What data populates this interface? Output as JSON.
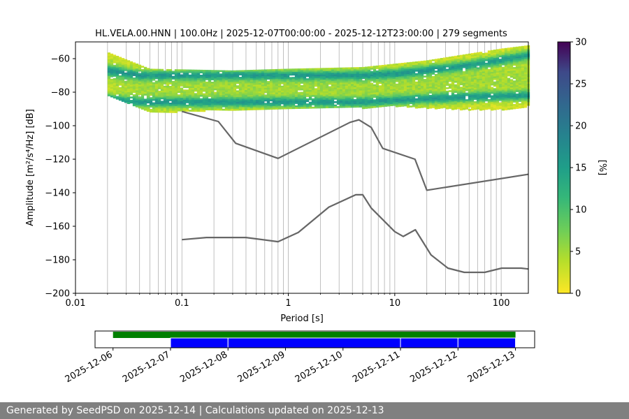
{
  "chart_data": [
    {
      "type": "heatmap",
      "title": "HL.VELA.00.HNN | 100.0Hz | 2025-12-07T00:00:00 - 2025-12-12T23:00:00 | 279 segments",
      "xlabel": "Period [s]",
      "ylabel": "Amplitude [m²/s⁴/Hz] [dB]",
      "x_scale": "log",
      "xlim": [
        0.01,
        180
      ],
      "ylim": [
        -200,
        -50
      ],
      "x_ticks": [
        0.01,
        0.1,
        1,
        10,
        100
      ],
      "x_tick_labels": [
        "0.01",
        "0.1",
        "1",
        "10",
        "100"
      ],
      "y_ticks": [
        -60,
        -80,
        -100,
        -120,
        -140,
        -160,
        -180,
        -200
      ],
      "grid": "vertical",
      "colorbar": {
        "label": "[%]",
        "min": 0,
        "max": 30,
        "ticks": [
          0,
          5,
          10,
          15,
          20,
          25,
          30
        ],
        "colormap": "viridis_r"
      },
      "psd_band": {
        "period_start": 0.02,
        "period_end": 180,
        "ridges": [
          {
            "periods": [
              0.02,
              0.04,
              0.1,
              1,
              5,
              10,
              20,
              50,
              180
            ],
            "db": [
              -67,
              -70,
              -70,
              -70,
              -70,
              -69,
              -67,
              -64,
              -58
            ],
            "strength": 12
          },
          {
            "periods": [
              0.02,
              0.04,
              0.1,
              1,
              5,
              10,
              20,
              50,
              180
            ],
            "db": [
              -84,
              -86,
              -86,
              -86,
              -86,
              -85,
              -84,
              -83,
              -82
            ],
            "strength": 12
          }
        ],
        "upper_edge": {
          "periods": [
            0.02,
            0.05,
            0.3,
            1,
            5,
            10,
            20,
            50,
            100,
            180
          ],
          "db": [
            -56,
            -66,
            -67,
            -66,
            -65,
            -63,
            -61,
            -57,
            -54,
            -52
          ]
        },
        "lower_edge": {
          "periods": [
            0.02,
            0.05,
            0.3,
            1,
            5,
            10,
            20,
            50,
            100,
            180
          ],
          "db": [
            -82,
            -92,
            -90,
            -90,
            -89,
            -88,
            -89,
            -90,
            -90,
            -89
          ]
        }
      },
      "series": [
        {
          "x": [
            0.1,
            0.22,
            0.32,
            0.8,
            3.8,
            4.6,
            6.0,
            7.7,
            15.5,
            20,
            180
          ],
          "y": [
            -91.5,
            -97.5,
            -110.5,
            -119.5,
            -98,
            -96.5,
            -101,
            -113.5,
            -120,
            -138.5,
            -129
          ]
        },
        {
          "x": [
            0.1,
            0.17,
            0.4,
            0.8,
            1.24,
            2.4,
            4.3,
            5.0,
            6.0,
            10,
            12,
            15.6,
            21.9,
            31.6,
            45,
            70,
            101,
            154,
            180
          ],
          "y": [
            -168,
            -166.7,
            -166.7,
            -169.2,
            -163.7,
            -148.6,
            -141.2,
            -141.2,
            -149.1,
            -163.2,
            -166.1,
            -162.1,
            -177.1,
            -185,
            -187.5,
            -187.5,
            -185,
            -185,
            -185.5
          ]
        }
      ]
    },
    {
      "type": "timeline",
      "x_tick_labels": [
        "2025-12-06",
        "2025-12-07",
        "2025-12-08",
        "2025-12-09",
        "2025-12-10",
        "2025-12-11",
        "2025-12-12",
        "2025-12-13"
      ],
      "xlim": [
        "2025-12-05T16:30:00",
        "2025-12-13T08:00:00"
      ],
      "rows": [
        {
          "color": "#008000",
          "segments": [
            [
              "2025-12-06T00:00:00",
              "2025-12-13T00:00:00"
            ]
          ]
        },
        {
          "color": "#0000ff",
          "segments": [
            [
              "2025-12-07T00:00:00",
              "2025-12-08T00:00:00"
            ],
            [
              "2025-12-08T00:00:00",
              "2025-12-11T00:00:00"
            ],
            [
              "2025-12-11T00:00:00",
              "2025-12-12T00:00:00"
            ],
            [
              "2025-12-12T00:00:00",
              "2025-12-13T00:00:00"
            ]
          ]
        }
      ]
    }
  ],
  "footer": {
    "text": "Generated by SeedPSD on 2025-12-14 | Calculations updated on 2025-12-13"
  }
}
